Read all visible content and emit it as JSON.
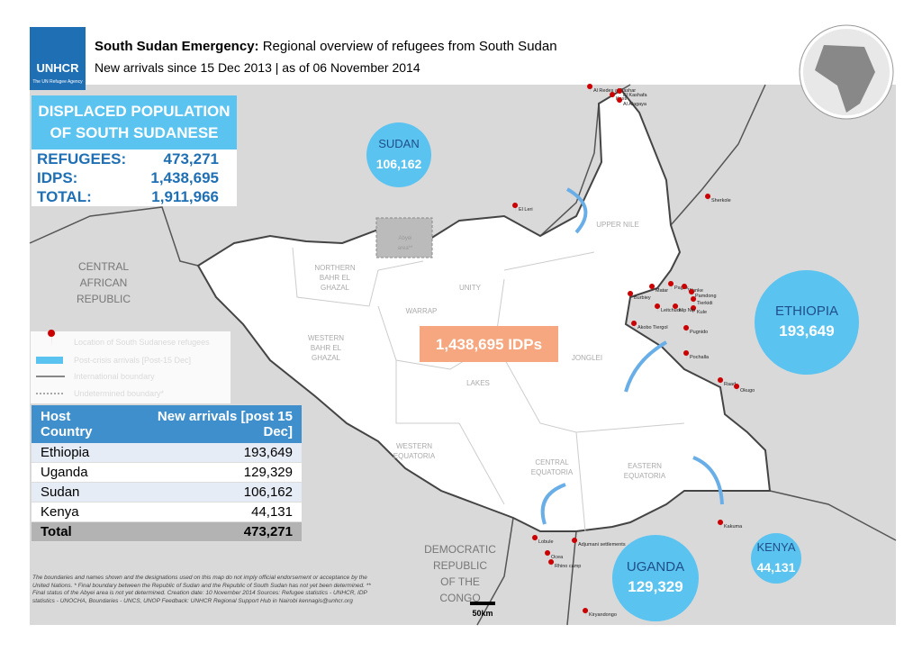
{
  "logo": {
    "name": "UNHCR",
    "tagline": "The UN Refugee Agency"
  },
  "header": {
    "title_bold": "South Sudan Emergency:",
    "title_rest": "Regional overview of refugees from South Sudan",
    "subtitle": "New arrivals since 15 Dec 2013 | as of 06 November 2014"
  },
  "summary": {
    "title": "DISPLACED POPULATION OF SOUTH SUDANESE",
    "rows": [
      [
        "REFUGEES:",
        "473,271"
      ],
      [
        "IDPS:",
        "1,438,695"
      ],
      [
        "TOTAL:",
        "1,911,966"
      ]
    ]
  },
  "bubbles": [
    {
      "country": "SUDAN",
      "value": "106,162"
    },
    {
      "country": "ETHIOPIA",
      "value": "193,649"
    },
    {
      "country": "UGANDA",
      "value": "129,329"
    },
    {
      "country": "KENYA",
      "value": "44,131"
    }
  ],
  "idp_label": "1,438,695 IDPs",
  "countries": [
    "CENTRAL AFRICAN REPUBLIC",
    "DEMOCRATIC REPUBLIC OF THE CONGO"
  ],
  "states": [
    "NORTHERN BAHR EL GHAZAL",
    "UNITY",
    "UPPER NILE",
    "WARRAP",
    "WESTERN BAHR EL GHAZAL",
    "JONGLEI",
    "LAKES",
    "WESTERN EQUATORIA",
    "CENTRAL EQUATORIA",
    "EASTERN EQUATORIA",
    "Abyei area**"
  ],
  "places": [
    "Al Redes al Bashar",
    "Kosti",
    "El Kashafa",
    "Al Alagaya",
    "El Leri",
    "Sherkole",
    "Pagak",
    "Matar",
    "Wanke",
    "Pamdong",
    "Tierkidi",
    "Kule",
    "Burbiey",
    "Leitchuor",
    "Nip Nip",
    "Akobo Tiergol",
    "Pugnido",
    "Pochalla",
    "Raad",
    "Okugo",
    "Kakuma",
    "Adjumani settlements",
    "Ocea",
    "Rhino camp",
    "Lobule",
    "Kiryandongo"
  ],
  "legend": [
    "Location of South Sudanese refugees",
    "Post-crisis arrivals [Post-15 Dec]",
    "International boundary",
    "Undetermined boundary*"
  ],
  "table": {
    "header": [
      "Host Country",
      "New arrivals [post 15 Dec]"
    ],
    "rows": [
      [
        "Ethiopia",
        "193,649"
      ],
      [
        "Uganda",
        "129,329"
      ],
      [
        "Sudan",
        "106,162"
      ],
      [
        "Kenya",
        "44,131"
      ]
    ],
    "total": [
      "Total",
      "473,271"
    ]
  },
  "footnote": "The boundaries and names shown and the designations used on this map do not imply official endorsement or acceptance by the United Nations. * Final boundary between the Republic of Sudan and the Republic of South Sudan has not yet been determined. ** Final status of the Abyei area is not yet determined. Creation date: 10 November 2014 Sources: Refugee statistics - UNHCR, IDP statistics - UNOCHA, Boundaries - UNCS, UNOP Feedback: UNHCR Regional Support Hub in Nairobi kennagis@unhcr.org",
  "scale": "50km"
}
